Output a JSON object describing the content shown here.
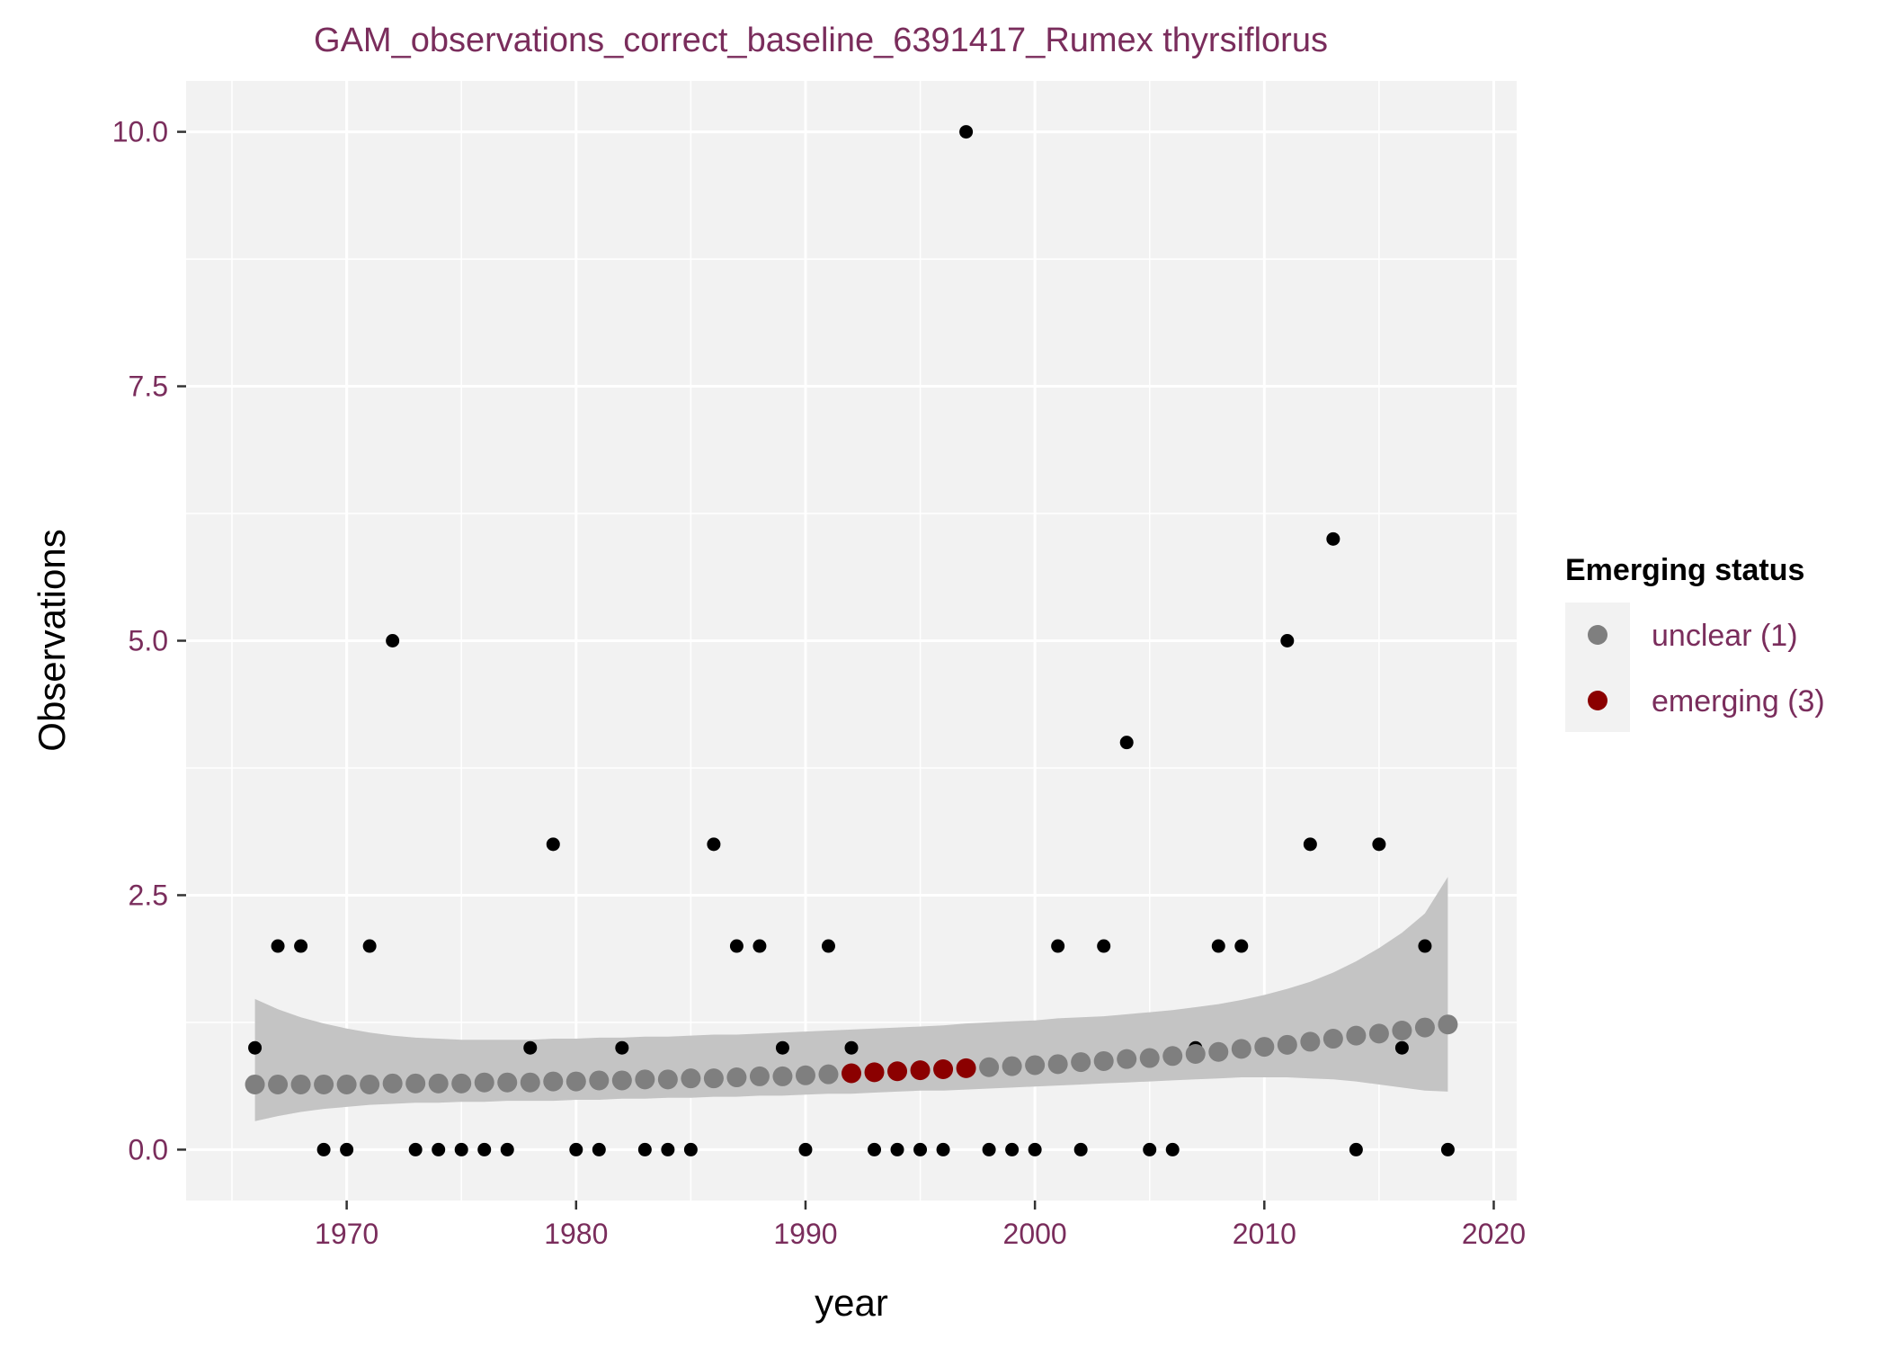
{
  "chart_data": {
    "type": "scatter",
    "title": "GAM_observations_correct_baseline_6391417_Rumex thyrsiflorus",
    "xlabel": "year",
    "ylabel": "Observations",
    "xlim": [
      1963,
      2021
    ],
    "ylim": [
      -0.5,
      10.5
    ],
    "x_ticks": [
      1970,
      1980,
      1990,
      2000,
      2010,
      2020
    ],
    "y_ticks": [
      0,
      2.5,
      5,
      7.5,
      10
    ],
    "y_tick_labels": [
      "0.0",
      "2.5",
      "5.0",
      "7.5",
      "10.0"
    ],
    "grid": true,
    "legend_position": "right",
    "observations": {
      "x": [
        1966,
        1967,
        1968,
        1969,
        1970,
        1971,
        1972,
        1973,
        1974,
        1975,
        1976,
        1977,
        1978,
        1979,
        1980,
        1981,
        1982,
        1983,
        1984,
        1985,
        1986,
        1987,
        1988,
        1989,
        1990,
        1991,
        1992,
        1993,
        1994,
        1995,
        1996,
        1997,
        1998,
        1999,
        2000,
        2001,
        2002,
        2003,
        2004,
        2005,
        2006,
        2007,
        2008,
        2009,
        2010,
        2011,
        2012,
        2013,
        2014,
        2015,
        2016,
        2017,
        2018
      ],
      "y": [
        1,
        2,
        2,
        0,
        0,
        2,
        5,
        0,
        0,
        0,
        0,
        0,
        1,
        3,
        0,
        0,
        1,
        0,
        0,
        0,
        3,
        2,
        2,
        1,
        0,
        2,
        1,
        0,
        0,
        0,
        0,
        10,
        0,
        0,
        0,
        2,
        0,
        2,
        4,
        0,
        0,
        1,
        2,
        2,
        1,
        5,
        3,
        6,
        0,
        3,
        1,
        2,
        0
      ],
      "color": "#000000"
    },
    "gam_fit": {
      "x": [
        1966,
        1967,
        1968,
        1969,
        1970,
        1971,
        1972,
        1973,
        1974,
        1975,
        1976,
        1977,
        1978,
        1979,
        1980,
        1981,
        1982,
        1983,
        1984,
        1985,
        1986,
        1987,
        1988,
        1989,
        1990,
        1991,
        1992,
        1993,
        1994,
        1995,
        1996,
        1997,
        1998,
        1999,
        2000,
        2001,
        2002,
        2003,
        2004,
        2005,
        2006,
        2007,
        2008,
        2009,
        2010,
        2011,
        2012,
        2013,
        2014,
        2015,
        2016,
        2017,
        2018
      ],
      "y": [
        0.64,
        0.64,
        0.64,
        0.64,
        0.64,
        0.64,
        0.65,
        0.65,
        0.65,
        0.65,
        0.66,
        0.66,
        0.66,
        0.67,
        0.67,
        0.68,
        0.68,
        0.69,
        0.69,
        0.7,
        0.7,
        0.71,
        0.72,
        0.72,
        0.73,
        0.74,
        0.75,
        0.76,
        0.77,
        0.78,
        0.79,
        0.8,
        0.81,
        0.82,
        0.83,
        0.84,
        0.86,
        0.87,
        0.89,
        0.9,
        0.92,
        0.94,
        0.96,
        0.99,
        1.01,
        1.03,
        1.06,
        1.09,
        1.12,
        1.14,
        1.17,
        1.2,
        1.23
      ],
      "status": [
        1,
        1,
        1,
        1,
        1,
        1,
        1,
        1,
        1,
        1,
        1,
        1,
        1,
        1,
        1,
        1,
        1,
        1,
        1,
        1,
        1,
        1,
        1,
        1,
        1,
        1,
        3,
        3,
        3,
        3,
        3,
        3,
        1,
        1,
        1,
        1,
        1,
        1,
        1,
        1,
        1,
        1,
        1,
        1,
        1,
        1,
        1,
        1,
        1,
        1,
        1,
        1,
        1
      ],
      "ci_upper": [
        1.48,
        1.38,
        1.3,
        1.24,
        1.19,
        1.15,
        1.12,
        1.1,
        1.09,
        1.08,
        1.08,
        1.08,
        1.08,
        1.09,
        1.09,
        1.1,
        1.1,
        1.11,
        1.11,
        1.12,
        1.13,
        1.13,
        1.14,
        1.15,
        1.16,
        1.17,
        1.18,
        1.19,
        1.2,
        1.21,
        1.22,
        1.24,
        1.25,
        1.26,
        1.27,
        1.29,
        1.3,
        1.31,
        1.33,
        1.35,
        1.37,
        1.4,
        1.43,
        1.47,
        1.52,
        1.58,
        1.65,
        1.74,
        1.85,
        1.98,
        2.13,
        2.32,
        2.68
      ],
      "ci_lower": [
        0.28,
        0.33,
        0.37,
        0.4,
        0.42,
        0.44,
        0.45,
        0.46,
        0.46,
        0.47,
        0.47,
        0.48,
        0.48,
        0.48,
        0.49,
        0.49,
        0.5,
        0.5,
        0.51,
        0.51,
        0.52,
        0.52,
        0.53,
        0.53,
        0.54,
        0.55,
        0.55,
        0.56,
        0.57,
        0.58,
        0.58,
        0.59,
        0.6,
        0.61,
        0.62,
        0.63,
        0.64,
        0.65,
        0.66,
        0.67,
        0.68,
        0.69,
        0.7,
        0.71,
        0.71,
        0.71,
        0.7,
        0.69,
        0.67,
        0.64,
        0.61,
        0.58,
        0.57
      ],
      "ci_color": "#c4c4c4"
    },
    "legend": {
      "title": "Emerging status",
      "entries": [
        {
          "label": "unclear (1)",
          "status": 1,
          "color": "#7f7f7f"
        },
        {
          "label": "emerging (3)",
          "status": 3,
          "color": "#8b0000"
        }
      ]
    }
  }
}
